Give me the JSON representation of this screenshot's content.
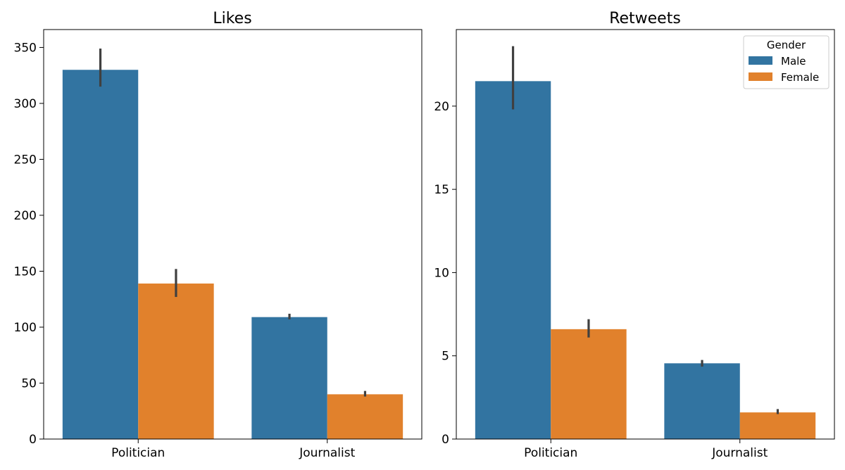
{
  "legend": {
    "title": "Gender",
    "entries": [
      {
        "name": "Male",
        "color": "#3274a1"
      },
      {
        "name": "Female",
        "color": "#e1812c"
      }
    ]
  },
  "chart_data": [
    {
      "type": "bar",
      "title": "Likes",
      "categories": [
        "Politician",
        "Journalist"
      ],
      "series": [
        {
          "name": "Male",
          "values": [
            330,
            109
          ],
          "error_low": [
            315,
            107
          ],
          "error_high": [
            349,
            112
          ]
        },
        {
          "name": "Female",
          "values": [
            139,
            40
          ],
          "error_low": [
            127,
            38
          ],
          "error_high": [
            152,
            43
          ]
        }
      ],
      "xlabel": "",
      "ylabel": "",
      "ylim": [
        0,
        366
      ],
      "yticks": [
        0,
        50,
        100,
        150,
        200,
        250,
        300,
        350
      ],
      "grid": false,
      "legend": "none"
    },
    {
      "type": "bar",
      "title": "Retweets",
      "categories": [
        "Politician",
        "Journalist"
      ],
      "series": [
        {
          "name": "Male",
          "values": [
            21.5,
            4.55
          ],
          "error_low": [
            19.8,
            4.35
          ],
          "error_high": [
            23.6,
            4.75
          ]
        },
        {
          "name": "Female",
          "values": [
            6.6,
            1.6
          ],
          "error_low": [
            6.1,
            1.5
          ],
          "error_high": [
            7.2,
            1.8
          ]
        }
      ],
      "xlabel": "",
      "ylabel": "",
      "ylim": [
        0,
        24.6
      ],
      "yticks": [
        0,
        5,
        10,
        15,
        20
      ],
      "grid": false,
      "legend": "top-right"
    }
  ]
}
